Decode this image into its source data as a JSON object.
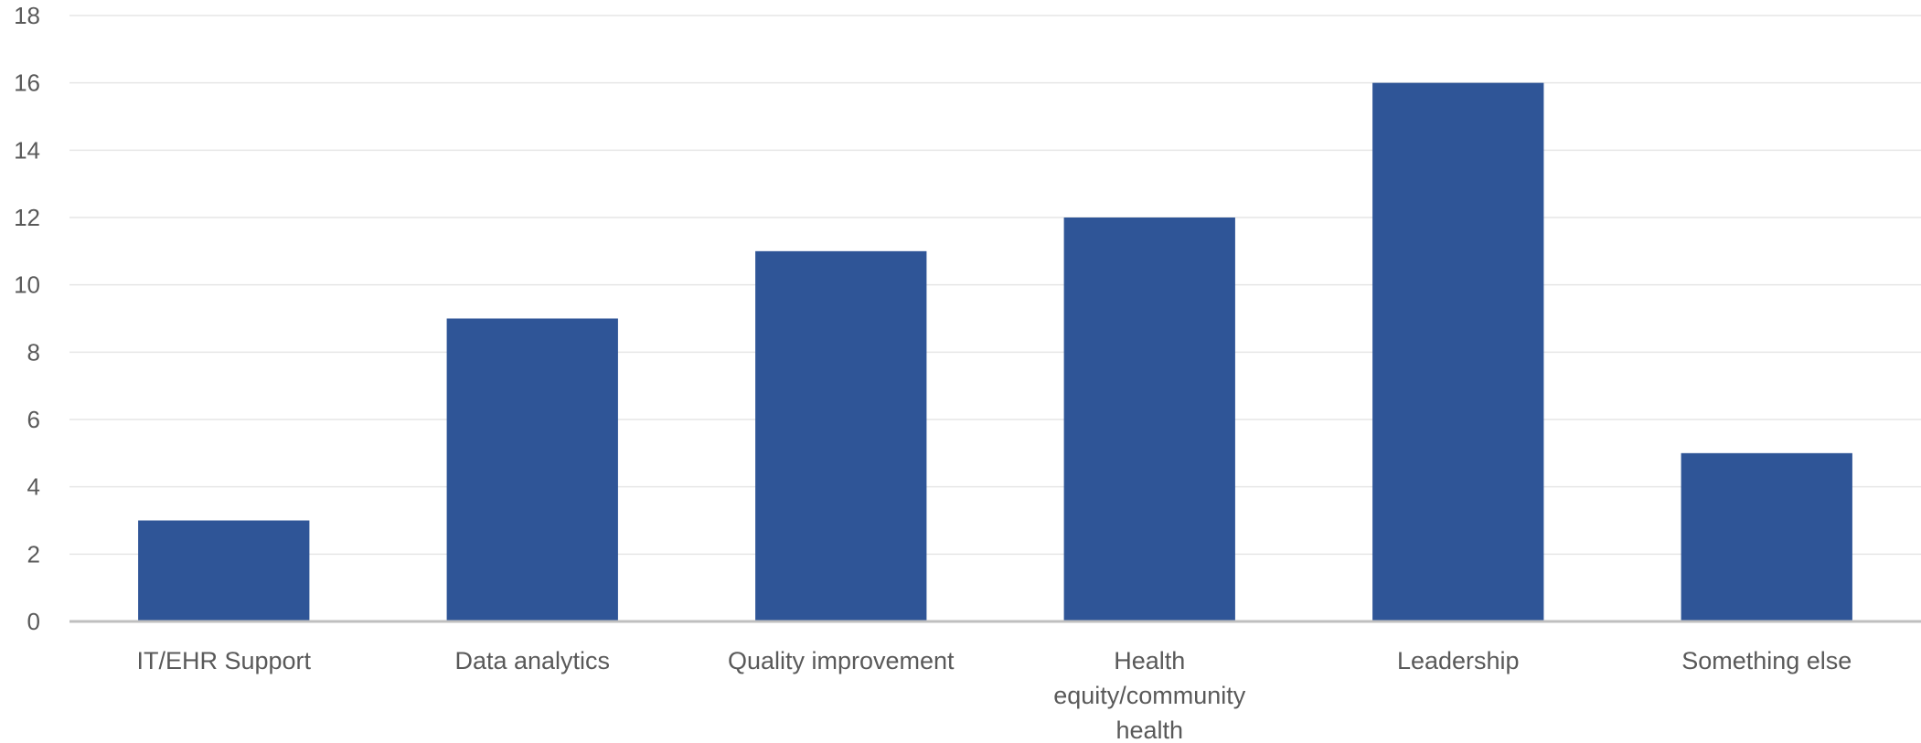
{
  "chart_data": {
    "type": "bar",
    "title": "",
    "xlabel": "",
    "ylabel": "",
    "categories": [
      [
        "IT/EHR Support"
      ],
      [
        "Data analytics"
      ],
      [
        "Quality improvement"
      ],
      [
        "Health",
        "equity/community",
        "health"
      ],
      [
        "Leadership"
      ],
      [
        "Something else"
      ]
    ],
    "values": [
      3,
      9,
      11,
      12,
      16,
      5
    ],
    "ylim": [
      0,
      18
    ],
    "yticks": [
      "0",
      "2",
      "4",
      "6",
      "8",
      "10",
      "12",
      "14",
      "16",
      "18"
    ],
    "grid": true,
    "legend": "none",
    "colors": {
      "bar": "#2F5597",
      "grid": "#e6e6e6",
      "axis": "#bfbfbf"
    }
  }
}
